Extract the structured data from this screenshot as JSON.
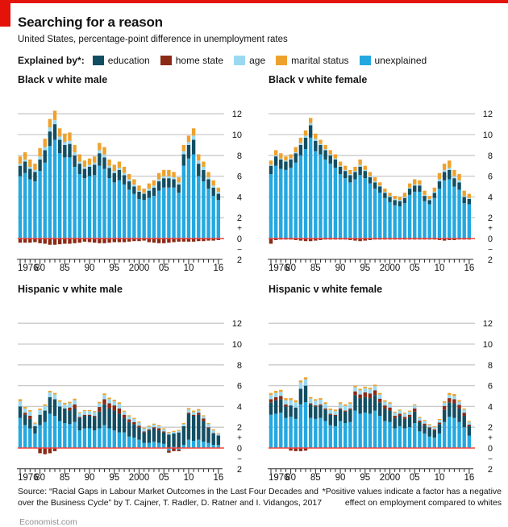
{
  "header": {
    "title": "Searching for a reason",
    "subtitle": "United States, percentage-point difference in unemployment rates"
  },
  "legend": {
    "label": "Explained by*:",
    "items": [
      {
        "name": "education",
        "color": "#124e63"
      },
      {
        "name": "home state",
        "color": "#8b2a15"
      },
      {
        "name": "age",
        "color": "#9bd9f2"
      },
      {
        "name": "marital status",
        "color": "#eea22e"
      },
      {
        "name": "unexplained",
        "color": "#25a8e0"
      }
    ]
  },
  "axes": {
    "y_gridlines": [
      2,
      4,
      6,
      8,
      10,
      12
    ],
    "y_tick_labels": [
      "12",
      "10",
      "8",
      "6",
      "4",
      "2",
      "0",
      "2"
    ],
    "plus_label": "+",
    "minus_label": "−",
    "ylim": [
      -2,
      12.5
    ],
    "zero_line_color": "#f6423c",
    "gridline_color": "#c9c9c9",
    "x_labels": [
      {
        "label": "1976",
        "year": 1976,
        "align": "start"
      },
      {
        "label": "80",
        "year": 1980,
        "align": "middle"
      },
      {
        "label": "85",
        "year": 1985,
        "align": "middle"
      },
      {
        "label": "90",
        "year": 1990,
        "align": "middle"
      },
      {
        "label": "95",
        "year": 1995,
        "align": "middle"
      },
      {
        "label": "2000",
        "year": 2000,
        "align": "middle"
      },
      {
        "label": "05",
        "year": 2005,
        "align": "middle"
      },
      {
        "label": "10",
        "year": 2010,
        "align": "middle"
      },
      {
        "label": "16",
        "year": 2016,
        "align": "middle"
      }
    ]
  },
  "chart_data": [
    {
      "id": "black-v-white-male",
      "type": "bar",
      "stacked": true,
      "title": "Black v white male",
      "start_year": 1976,
      "end_year": 2016,
      "stack_order": "bottom to top as listed; negatives stack downward",
      "series": [
        {
          "name": "unexplained",
          "color": "#25a8e0",
          "values": [
            6.0,
            6.3,
            5.7,
            5.5,
            6.5,
            7.3,
            8.9,
            9.5,
            8.2,
            7.8,
            7.8,
            6.9,
            6.2,
            5.8,
            6.0,
            6.1,
            7.0,
            6.7,
            5.8,
            5.4,
            5.6,
            5.2,
            4.7,
            4.3,
            3.8,
            3.7,
            3.9,
            4.1,
            4.6,
            4.9,
            4.9,
            4.9,
            4.4,
            7.0,
            7.7,
            8.1,
            6.0,
            5.5,
            4.8,
            4.1,
            3.7
          ]
        },
        {
          "name": "education",
          "color": "#124e63",
          "values": [
            1.0,
            1.1,
            1.0,
            0.9,
            1.1,
            1.2,
            1.4,
            1.5,
            1.3,
            1.2,
            1.3,
            1.1,
            1.0,
            0.9,
            0.9,
            1.0,
            1.2,
            1.1,
            1.0,
            0.9,
            1.0,
            0.9,
            0.8,
            0.7,
            0.7,
            0.6,
            0.7,
            0.8,
            0.9,
            0.9,
            0.9,
            0.8,
            0.8,
            1.1,
            1.3,
            1.4,
            1.2,
            1.1,
            0.9,
            0.8,
            0.6
          ]
        },
        {
          "name": "home state",
          "color": "#8b2a15",
          "values": [
            -0.4,
            -0.4,
            -0.4,
            -0.35,
            -0.45,
            -0.5,
            -0.6,
            -0.6,
            -0.55,
            -0.5,
            -0.5,
            -0.45,
            -0.4,
            -0.3,
            -0.35,
            -0.4,
            -0.45,
            -0.45,
            -0.4,
            -0.35,
            -0.35,
            -0.35,
            -0.3,
            -0.25,
            -0.25,
            -0.2,
            -0.35,
            -0.4,
            -0.45,
            -0.45,
            -0.4,
            -0.35,
            -0.3,
            -0.3,
            -0.3,
            -0.3,
            -0.25,
            -0.25,
            -0.2,
            -0.2,
            -0.15
          ]
        },
        {
          "name": "age",
          "color": "#9bd9f2",
          "values": [
            0.2,
            0.2,
            0.2,
            0.2,
            0.3,
            0.3,
            0.4,
            0.4,
            0.3,
            0.3,
            0.3,
            0.3,
            0.2,
            0.2,
            0.2,
            0.2,
            0.3,
            0.3,
            0.2,
            0.2,
            0.2,
            0.2,
            0.2,
            0.2,
            0.1,
            0.1,
            0.2,
            0.2,
            0.2,
            0.2,
            0.2,
            0.2,
            0.2,
            0.3,
            0.3,
            0.4,
            0.3,
            0.3,
            0.2,
            0.2,
            0.2
          ]
        },
        {
          "name": "marital status",
          "color": "#eea22e",
          "values": [
            0.7,
            0.7,
            0.7,
            0.6,
            0.8,
            0.8,
            0.8,
            0.9,
            0.8,
            0.8,
            0.8,
            0.7,
            0.7,
            0.6,
            0.6,
            0.6,
            0.7,
            0.7,
            0.6,
            0.6,
            0.6,
            0.6,
            0.5,
            0.5,
            0.5,
            0.4,
            0.5,
            0.5,
            0.6,
            0.6,
            0.6,
            0.5,
            0.5,
            0.6,
            0.6,
            0.7,
            0.6,
            0.5,
            0.5,
            0.5,
            0.4
          ]
        }
      ]
    },
    {
      "id": "black-v-white-female",
      "type": "bar",
      "stacked": true,
      "title": "Black v white female",
      "start_year": 1976,
      "end_year": 2016,
      "series": [
        {
          "name": "unexplained",
          "color": "#25a8e0",
          "values": [
            6.2,
            7.0,
            6.7,
            6.6,
            6.8,
            7.3,
            8.0,
            8.6,
            9.7,
            8.4,
            8.1,
            7.6,
            7.2,
            6.8,
            6.2,
            5.8,
            5.4,
            5.7,
            6.1,
            5.8,
            5.3,
            4.8,
            4.4,
            3.9,
            3.5,
            3.2,
            3.1,
            3.4,
            4.2,
            4.5,
            4.5,
            3.6,
            3.3,
            3.9,
            4.8,
            5.6,
            5.7,
            5.0,
            4.7,
            3.4,
            3.3
          ]
        },
        {
          "name": "education",
          "color": "#124e63",
          "values": [
            0.8,
            0.9,
            0.9,
            0.8,
            0.8,
            0.9,
            1.0,
            1.1,
            1.2,
            1.0,
            0.9,
            0.9,
            0.8,
            0.8,
            0.7,
            0.7,
            0.7,
            0.7,
            0.8,
            0.7,
            0.6,
            0.6,
            0.6,
            0.5,
            0.5,
            0.5,
            0.5,
            0.5,
            0.6,
            0.6,
            0.6,
            0.5,
            0.4,
            0.5,
            0.7,
            0.8,
            0.9,
            0.8,
            0.7,
            0.6,
            0.5
          ]
        },
        {
          "name": "home state",
          "color": "#8b2a15",
          "values": [
            -0.5,
            -0.15,
            -0.1,
            -0.1,
            -0.1,
            -0.15,
            -0.2,
            -0.25,
            -0.25,
            -0.2,
            -0.15,
            -0.1,
            -0.1,
            -0.1,
            -0.1,
            -0.1,
            -0.15,
            -0.2,
            -0.25,
            -0.2,
            -0.15,
            -0.1,
            -0.1,
            -0.1,
            -0.1,
            -0.1,
            -0.1,
            -0.1,
            -0.1,
            -0.1,
            -0.1,
            -0.1,
            -0.1,
            -0.1,
            -0.15,
            -0.2,
            -0.15,
            -0.15,
            -0.1,
            -0.1,
            -0.1
          ]
        },
        {
          "name": "age",
          "color": "#9bd9f2",
          "values": [
            0.1,
            0.1,
            0.1,
            0.1,
            0.1,
            0.1,
            0.2,
            0.2,
            0.2,
            0.2,
            0.1,
            0.1,
            0.1,
            0.1,
            0.1,
            0.1,
            0.1,
            0.1,
            0.2,
            0.1,
            0.1,
            0.1,
            0.1,
            0.1,
            0.1,
            0.1,
            0.1,
            0.1,
            0.1,
            0.1,
            0.1,
            0.1,
            0.1,
            0.1,
            0.2,
            0.2,
            0.2,
            0.2,
            0.2,
            0.1,
            0.1
          ]
        },
        {
          "name": "marital status",
          "color": "#eea22e",
          "values": [
            0.4,
            0.5,
            0.5,
            0.4,
            0.4,
            0.5,
            0.5,
            0.5,
            0.5,
            0.5,
            0.4,
            0.4,
            0.4,
            0.4,
            0.4,
            0.4,
            0.4,
            0.4,
            0.5,
            0.4,
            0.4,
            0.4,
            0.3,
            0.3,
            0.3,
            0.3,
            0.3,
            0.4,
            0.4,
            0.5,
            0.4,
            0.4,
            0.3,
            0.4,
            0.6,
            0.6,
            0.7,
            0.6,
            0.6,
            0.5,
            0.4
          ]
        }
      ]
    },
    {
      "id": "hispanic-v-white-male",
      "type": "bar",
      "stacked": true,
      "title": "Hispanic v white male",
      "start_year": 1976,
      "end_year": 2016,
      "series": [
        {
          "name": "unexplained",
          "color": "#25a8e0",
          "values": [
            2.9,
            2.2,
            1.9,
            1.4,
            2.2,
            2.5,
            3.3,
            3.1,
            2.6,
            2.4,
            2.3,
            2.5,
            1.7,
            1.9,
            1.9,
            1.7,
            1.9,
            2.2,
            1.9,
            1.7,
            1.5,
            1.5,
            1.1,
            1.0,
            0.8,
            0.5,
            0.5,
            0.6,
            0.5,
            0.4,
            -0.25,
            0.1,
            -0.15,
            0.3,
            0.8,
            0.7,
            0.8,
            0.6,
            0.5,
            0.3,
            0.3
          ]
        },
        {
          "name": "education",
          "color": "#124e63",
          "values": [
            1.1,
            1.0,
            0.9,
            0.7,
            1.0,
            1.1,
            1.6,
            1.6,
            1.4,
            1.4,
            1.3,
            1.3,
            1.2,
            1.2,
            1.2,
            1.3,
            1.6,
            2.0,
            1.9,
            1.9,
            1.8,
            1.4,
            1.4,
            1.3,
            1.2,
            1.0,
            1.2,
            1.3,
            1.2,
            1.1,
            1.3,
            1.3,
            1.5,
            1.8,
            2.5,
            2.4,
            2.4,
            2.0,
            1.4,
            1.1,
            0.9
          ]
        },
        {
          "name": "home state",
          "color": "#8b2a15",
          "values": [
            0,
            0.2,
            0.3,
            0,
            -0.5,
            -0.6,
            -0.5,
            -0.3,
            0,
            0,
            0.3,
            0.4,
            0.1,
            0.1,
            0.1,
            0.1,
            0.45,
            0.5,
            0.5,
            0.5,
            0.5,
            0.3,
            0.25,
            0.2,
            0.15,
            0.1,
            0.1,
            0.1,
            0.2,
            0.1,
            -0.2,
            -0.3,
            -0.15,
            0,
            0.1,
            0.1,
            0.2,
            0.25,
            0.1,
            0.05,
            0
          ]
        },
        {
          "name": "age",
          "color": "#9bd9f2",
          "values": [
            0.5,
            0.4,
            0.4,
            0.25,
            0.45,
            0.45,
            0.45,
            0.45,
            0.45,
            0.4,
            0.4,
            0.4,
            0.35,
            0.35,
            0.35,
            0.35,
            0.35,
            0.4,
            0.4,
            0.4,
            0.45,
            0.3,
            0.3,
            0.3,
            0.3,
            0.25,
            0.25,
            0.25,
            0.2,
            0.2,
            0.15,
            0.15,
            0.15,
            0.2,
            0.3,
            0.25,
            0.2,
            0.2,
            0.3,
            0.25,
            0.15
          ]
        },
        {
          "name": "marital status",
          "color": "#eea22e",
          "values": [
            0.2,
            0.15,
            0.15,
            0.1,
            0.15,
            0.15,
            0.15,
            0.15,
            0.15,
            0.15,
            0.15,
            0.15,
            0.1,
            0.1,
            0.1,
            0.1,
            0.15,
            0.15,
            0.15,
            0.15,
            0.15,
            0.1,
            0.1,
            0.1,
            0.1,
            0.1,
            0.1,
            0.1,
            0.1,
            0.1,
            0.1,
            0.1,
            0.1,
            0.1,
            0.15,
            0.15,
            0.15,
            0.1,
            0.1,
            0.1,
            0.08
          ]
        }
      ]
    },
    {
      "id": "hispanic-v-white-female",
      "type": "bar",
      "stacked": true,
      "title": "Hispanic v white female",
      "start_year": 1976,
      "end_year": 2016,
      "series": [
        {
          "name": "unexplained",
          "color": "#25a8e0",
          "values": [
            3.2,
            3.3,
            3.4,
            2.9,
            3.0,
            2.8,
            4.2,
            4.4,
            2.9,
            2.8,
            2.9,
            2.6,
            2.2,
            2.1,
            2.6,
            2.4,
            2.5,
            3.6,
            3.3,
            3.4,
            3.3,
            3.6,
            3.1,
            2.6,
            2.5,
            1.9,
            2.1,
            1.9,
            2.0,
            2.4,
            1.6,
            1.4,
            1.1,
            1.0,
            1.4,
            2.5,
            3.0,
            2.9,
            2.5,
            2.0,
            1.2
          ]
        },
        {
          "name": "education",
          "color": "#124e63",
          "values": [
            1.2,
            1.3,
            1.3,
            1.1,
            1.1,
            1.1,
            1.5,
            1.6,
            1.3,
            1.2,
            1.2,
            1.1,
            1.0,
            1.0,
            1.1,
            1.1,
            1.2,
            1.5,
            1.5,
            1.5,
            1.5,
            1.5,
            1.3,
            1.2,
            1.1,
            1.0,
            1.0,
            0.9,
            1.0,
            1.1,
            0.9,
            0.8,
            0.8,
            0.7,
            0.9,
            1.2,
            1.4,
            1.4,
            1.3,
            1.1,
            0.9
          ]
        },
        {
          "name": "home state",
          "color": "#8b2a15",
          "values": [
            0.3,
            0.3,
            0.3,
            0.2,
            -0.25,
            -0.3,
            -0.3,
            -0.25,
            0.1,
            0.1,
            0.1,
            0.1,
            0.1,
            0.1,
            0.1,
            0.1,
            0.1,
            0.35,
            0.35,
            0.45,
            0.45,
            0.45,
            0.35,
            0.3,
            0.3,
            0.2,
            0.2,
            0.2,
            0.2,
            0.3,
            0.15,
            0.15,
            0.1,
            0.1,
            0.15,
            0.35,
            0.4,
            0.4,
            0.35,
            0.3,
            0.15
          ]
        },
        {
          "name": "age",
          "color": "#9bd9f2",
          "values": [
            0.4,
            0.4,
            0.4,
            0.4,
            0.5,
            0.5,
            0.6,
            0.6,
            0.45,
            0.45,
            0.45,
            0.45,
            0.35,
            0.35,
            0.45,
            0.45,
            0.45,
            0.4,
            0.4,
            0.4,
            0.4,
            0.4,
            0.4,
            0.35,
            0.35,
            0.3,
            0.3,
            0.3,
            0.3,
            0.3,
            0.25,
            0.25,
            0.2,
            0.2,
            0.25,
            0.3,
            0.3,
            0.3,
            0.3,
            0.3,
            0.25
          ]
        },
        {
          "name": "marital status",
          "color": "#eea22e",
          "values": [
            0.2,
            0.2,
            0.2,
            0.2,
            0.2,
            0.2,
            0.2,
            0.2,
            0.15,
            0.15,
            0.15,
            0.15,
            0.15,
            0.15,
            0.15,
            0.15,
            0.15,
            0.15,
            0.15,
            0.15,
            0.15,
            0.15,
            0.15,
            0.15,
            0.15,
            0.1,
            0.1,
            0.1,
            0.1,
            0.1,
            0.1,
            0.1,
            0.1,
            0.1,
            0.1,
            0.15,
            0.2,
            0.2,
            0.15,
            0.1,
            0.1
          ]
        }
      ]
    }
  ],
  "footer": {
    "source_line1": "Source: “Racial Gaps in Labour Market Outcomes in the Last Four Decades and",
    "source_line2": "over the Business Cycle” by T. Cajner, T. Radler, D. Ratner and I. Vidangos, 2017",
    "note_line1": "*Positive values indicate a factor has a negative",
    "note_line2": "effect on employment compared to whites",
    "brand": "Economist.com"
  },
  "brand_color": "#e3120b"
}
